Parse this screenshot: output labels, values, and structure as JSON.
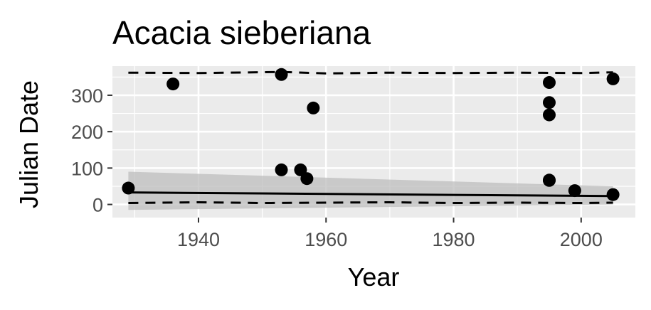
{
  "chart_data": {
    "type": "scatter",
    "title": "Acacia sieberiana",
    "xlabel": "Year",
    "ylabel": "Julian Date",
    "xlim": [
      1926.5,
      2008.5
    ],
    "ylim": [
      -36,
      380
    ],
    "x_ticks": [
      1940,
      1960,
      1980,
      2000
    ],
    "y_ticks": [
      0,
      100,
      200,
      300
    ],
    "grid": true,
    "legend": "none",
    "colors": {
      "panel": "#ebebeb",
      "grid_major": "#ffffff",
      "points": "#000000",
      "ribbon": "#bdbdbd",
      "tick_text": "#4d4d4d"
    },
    "points": [
      {
        "x": 1929,
        "y": 45
      },
      {
        "x": 1936,
        "y": 331
      },
      {
        "x": 1953,
        "y": 357
      },
      {
        "x": 1953,
        "y": 95
      },
      {
        "x": 1956,
        "y": 95
      },
      {
        "x": 1957,
        "y": 71
      },
      {
        "x": 1958,
        "y": 265
      },
      {
        "x": 1995,
        "y": 335
      },
      {
        "x": 1995,
        "y": 280
      },
      {
        "x": 1995,
        "y": 246
      },
      {
        "x": 1995,
        "y": 67
      },
      {
        "x": 1995,
        "y": 66
      },
      {
        "x": 1999,
        "y": 38
      },
      {
        "x": 2005,
        "y": 345
      },
      {
        "x": 2005,
        "y": 27
      }
    ],
    "trend_line": {
      "x": [
        1929,
        2005
      ],
      "y": [
        33,
        23
      ]
    },
    "confidence_band": {
      "x": [
        1929,
        2005
      ],
      "lower": [
        -15,
        0
      ],
      "upper": [
        90,
        50
      ]
    },
    "quantile_upper": {
      "x": [
        1929,
        1940,
        1953,
        1960,
        1970,
        1980,
        1990,
        2000,
        2005
      ],
      "y": [
        362,
        361,
        364,
        360,
        362,
        361,
        362,
        361,
        363
      ]
    },
    "quantile_lower": {
      "x": [
        1929,
        1940,
        1950,
        1960,
        1970,
        1980,
        1990,
        2000,
        2005
      ],
      "y": [
        4,
        6,
        4,
        5,
        6,
        4,
        5,
        4,
        5
      ]
    }
  }
}
